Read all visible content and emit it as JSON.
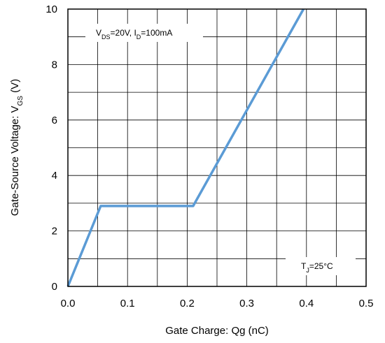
{
  "chart_data": {
    "type": "line",
    "title": "",
    "xlabel": "Gate Charge: Qg (nC)",
    "ylabel": {
      "main": "Gate-Source Voltage: V",
      "sub": "GS",
      "unit": " (V)"
    },
    "xlim": [
      0.0,
      0.5
    ],
    "ylim": [
      0,
      10
    ],
    "x_ticks": [
      "0.0",
      "0.1",
      "0.2",
      "0.3",
      "0.4",
      "0.5"
    ],
    "y_ticks": [
      "0",
      "2",
      "4",
      "6",
      "8",
      "10"
    ],
    "grid": true,
    "series": [
      {
        "color": "#5b9bd5",
        "x": [
          0.0,
          0.055,
          0.21,
          0.395
        ],
        "y": [
          0.0,
          2.9,
          2.9,
          10.0
        ]
      }
    ],
    "annotations": [
      {
        "id": "conditions",
        "parts": [
          {
            "t": "V",
            "sub": false
          },
          {
            "t": "DS",
            "sub": true
          },
          {
            "t": "=20V, I",
            "sub": false
          },
          {
            "t": "D",
            "sub": true
          },
          {
            "t": "=100mA",
            "sub": false
          }
        ]
      },
      {
        "id": "temperature",
        "parts": [
          {
            "t": "T",
            "sub": false
          },
          {
            "t": "J",
            "sub": true
          },
          {
            "t": "=25°C",
            "sub": false
          }
        ]
      }
    ]
  }
}
